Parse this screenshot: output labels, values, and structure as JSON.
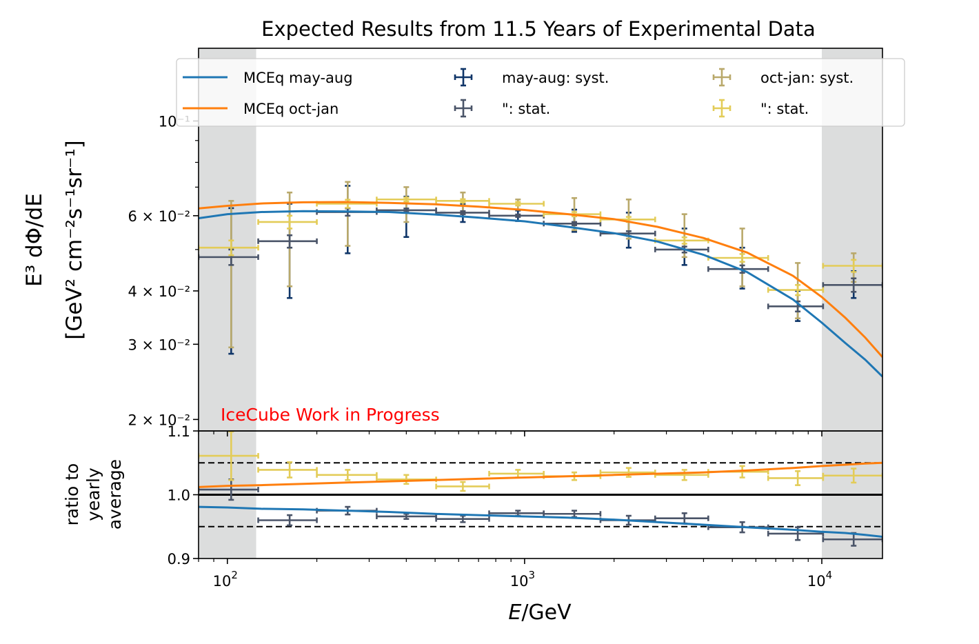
{
  "chart_data": {
    "type": "scatter",
    "title": "Expected Results from 11.5 Years of Experimental Data",
    "xlabel": "E/GeV",
    "ylabel_top": [
      "E³ dΦ/dE",
      "[GeV² cm⁻²s⁻¹sr⁻¹]"
    ],
    "ylabel_bottom": [
      "ratio to",
      "yearly",
      "average"
    ],
    "annotation": "IceCube Work in Progress",
    "xscale": "log",
    "xlim": [
      80,
      16000
    ],
    "top_panel": {
      "yscale": "log",
      "ylim": [
        0.0188,
        0.148
      ],
      "tick_labels": [
        {
          "value": 0.1,
          "label": "10⁻¹"
        },
        {
          "value": 0.06,
          "label": "6 × 10⁻²"
        },
        {
          "value": 0.04,
          "label": "4 × 10⁻²"
        },
        {
          "value": 0.03,
          "label": "3 × 10⁻²"
        },
        {
          "value": 0.02,
          "label": "2 × 10⁻²"
        }
      ]
    },
    "bottom_panel": {
      "ylim": [
        0.9,
        1.1
      ],
      "tick_labels": [
        {
          "value": 1.1,
          "label": "1.1"
        },
        {
          "value": 1.0,
          "label": "1.0"
        },
        {
          "value": 0.9,
          "label": "0.9"
        }
      ],
      "reference_lines": [
        {
          "y": 1.0,
          "style": "solid"
        },
        {
          "y": 1.05,
          "style": "dashed"
        },
        {
          "y": 0.95,
          "style": "dashed"
        }
      ]
    },
    "x_tick_labels": [
      {
        "value": 100,
        "base": "10",
        "exp": "2"
      },
      {
        "value": 1000,
        "base": "10",
        "exp": "3"
      },
      {
        "value": 10000,
        "base": "10",
        "exp": "4"
      }
    ],
    "shaded_regions": [
      [
        80,
        125
      ],
      [
        10000,
        16000
      ]
    ],
    "legend": {
      "placement": "upper-center",
      "entries": [
        {
          "label": "MCEq may-aug",
          "kind": "line",
          "color": "#1f77b4"
        },
        {
          "label": "MCEq oct-jan",
          "kind": "line",
          "color": "#ff7f0e"
        },
        {
          "label": "may-aug: syst.",
          "kind": "errorbar",
          "color": "#0f3568"
        },
        {
          "label": "\": stat.",
          "kind": "errorbar",
          "color": "#4a5468"
        },
        {
          "label": "oct-jan: syst.",
          "kind": "errorbar",
          "color": "#b9a96b"
        },
        {
          "label": "\": stat.",
          "kind": "errorbar",
          "color": "#e3cc58"
        }
      ]
    },
    "series": [
      {
        "name": "MCEq may-aug",
        "kind": "line",
        "color": "#1f77b4",
        "x": [
          80,
          100,
          130,
          180,
          250,
          350,
          500,
          700,
          1000,
          1400,
          2000,
          2800,
          4000,
          5600,
          8000,
          10000,
          12000,
          14000,
          16000
        ],
        "y": [
          0.0592,
          0.0605,
          0.0612,
          0.0615,
          0.0614,
          0.0612,
          0.0604,
          0.0594,
          0.0582,
          0.0565,
          0.0546,
          0.0522,
          0.0486,
          0.0443,
          0.0382,
          0.0337,
          0.0302,
          0.0276,
          0.0252
        ],
        "ratio": [
          0.981,
          0.98,
          0.978,
          0.977,
          0.975,
          0.973,
          0.97,
          0.968,
          0.966,
          0.964,
          0.961,
          0.957,
          0.953,
          0.949,
          0.945,
          0.942,
          0.94,
          0.937,
          0.934
        ]
      },
      {
        "name": "MCEq oct-jan",
        "kind": "line",
        "color": "#ff7f0e",
        "x": [
          80,
          100,
          130,
          180,
          250,
          350,
          500,
          700,
          1000,
          1400,
          2000,
          2800,
          4000,
          5600,
          8000,
          10000,
          12000,
          14000,
          16000
        ],
        "y": [
          0.0624,
          0.0633,
          0.0641,
          0.0645,
          0.0646,
          0.0643,
          0.0638,
          0.063,
          0.0619,
          0.0605,
          0.0589,
          0.0565,
          0.0532,
          0.0492,
          0.0434,
          0.0387,
          0.0346,
          0.0311,
          0.028
        ],
        "ratio": [
          1.012,
          1.014,
          1.015,
          1.017,
          1.019,
          1.021,
          1.023,
          1.025,
          1.027,
          1.029,
          1.031,
          1.033,
          1.035,
          1.038,
          1.042,
          1.045,
          1.047,
          1.049,
          1.05
        ]
      },
      {
        "name": "may-aug",
        "kind": "errorbar",
        "color_syst": "#0f3568",
        "color_stat": "#4a5468",
        "bins": [
          {
            "x": 103,
            "xlo": 80,
            "xhi": 127,
            "y": 0.048,
            "syst": [
              0.0285,
              0.0625
            ],
            "stat": [
              0.046,
              0.05
            ],
            "ratio": 1.008,
            "ratio_err": [
              0.992,
              1.024
            ]
          },
          {
            "x": 162,
            "xlo": 127,
            "xhi": 200,
            "y": 0.0523,
            "syst": [
              0.0385,
              0.064
            ],
            "stat": [
              0.0505,
              0.054
            ],
            "ratio": 0.96,
            "ratio_err": [
              0.952,
              0.968
            ]
          },
          {
            "x": 254,
            "xlo": 200,
            "xhi": 318,
            "y": 0.0612,
            "syst": [
              0.049,
              0.0705
            ],
            "stat": [
              0.06,
              0.0624
            ],
            "ratio": 0.975,
            "ratio_err": [
              0.969,
              0.981
            ]
          },
          {
            "x": 400,
            "xlo": 318,
            "xhi": 504,
            "y": 0.0618,
            "syst": [
              0.0535,
              0.0665
            ],
            "stat": [
              0.0612,
              0.0624
            ],
            "ratio": 0.966,
            "ratio_err": [
              0.962,
              0.97
            ]
          },
          {
            "x": 620,
            "xlo": 504,
            "xhi": 760,
            "y": 0.061,
            "syst": [
              0.058,
              0.064
            ],
            "stat": [
              0.0605,
              0.0615
            ],
            "ratio": 0.962,
            "ratio_err": [
              0.957,
              0.967
            ]
          },
          {
            "x": 950,
            "xlo": 760,
            "xhi": 1160,
            "y": 0.06,
            "syst": [
              0.0583,
              0.0617
            ],
            "stat": [
              0.0596,
              0.0604
            ],
            "ratio": 0.971,
            "ratio_err": [
              0.967,
              0.975
            ]
          },
          {
            "x": 1470,
            "xlo": 1160,
            "xhi": 1800,
            "y": 0.0575,
            "syst": [
              0.055,
              0.062
            ],
            "stat": [
              0.057,
              0.058
            ],
            "ratio": 0.97,
            "ratio_err": [
              0.965,
              0.975
            ]
          },
          {
            "x": 2240,
            "xlo": 1800,
            "xhi": 2750,
            "y": 0.0545,
            "syst": [
              0.0505,
              0.061
            ],
            "stat": [
              0.0538,
              0.0552
            ],
            "ratio": 0.96,
            "ratio_err": [
              0.953,
              0.967
            ]
          },
          {
            "x": 3450,
            "xlo": 2750,
            "xhi": 4150,
            "y": 0.05,
            "syst": [
              0.046,
              0.056
            ],
            "stat": [
              0.0492,
              0.0508
            ],
            "ratio": 0.963,
            "ratio_err": [
              0.955,
              0.971
            ]
          },
          {
            "x": 5400,
            "xlo": 4150,
            "xhi": 6600,
            "y": 0.045,
            "syst": [
              0.0405,
              0.0505
            ],
            "stat": [
              0.0441,
              0.0459
            ],
            "ratio": 0.949,
            "ratio_err": [
              0.941,
              0.957
            ]
          },
          {
            "x": 8300,
            "xlo": 6600,
            "xhi": 10100,
            "y": 0.0368,
            "syst": [
              0.034,
              0.04
            ],
            "stat": [
              0.0358,
              0.0378
            ],
            "ratio": 0.939,
            "ratio_err": [
              0.929,
              0.949
            ]
          },
          {
            "x": 12800,
            "xlo": 10100,
            "xhi": 16000,
            "y": 0.0413,
            "syst": [
              0.0385,
              0.0445
            ],
            "stat": [
              0.0398,
              0.0428
            ],
            "ratio": 0.93,
            "ratio_err": [
              0.92,
              0.94
            ]
          }
        ]
      },
      {
        "name": "oct-jan",
        "kind": "errorbar",
        "color_syst": "#b9a96b",
        "color_stat": "#e3cc58",
        "bins": [
          {
            "x": 103,
            "xlo": 80,
            "xhi": 127,
            "y": 0.0505,
            "syst": [
              0.0295,
              0.065
            ],
            "stat": [
              0.0485,
              0.0525
            ],
            "ratio": 1.061,
            "ratio_err": [
              1.023,
              1.099
            ]
          },
          {
            "x": 162,
            "xlo": 127,
            "xhi": 200,
            "y": 0.058,
            "syst": [
              0.041,
              0.068
            ],
            "stat": [
              0.056,
              0.06
            ],
            "ratio": 1.039,
            "ratio_err": [
              1.027,
              1.051
            ]
          },
          {
            "x": 254,
            "xlo": 200,
            "xhi": 318,
            "y": 0.064,
            "syst": [
              0.051,
              0.072
            ],
            "stat": [
              0.0626,
              0.0654
            ],
            "ratio": 1.031,
            "ratio_err": [
              1.023,
              1.039
            ]
          },
          {
            "x": 400,
            "xlo": 318,
            "xhi": 504,
            "y": 0.0655,
            "syst": [
              0.058,
              0.07
            ],
            "stat": [
              0.0648,
              0.0662
            ],
            "ratio": 1.024,
            "ratio_err": [
              1.017,
              1.031
            ]
          },
          {
            "x": 620,
            "xlo": 504,
            "xhi": 760,
            "y": 0.065,
            "syst": [
              0.0605,
              0.068
            ],
            "stat": [
              0.0644,
              0.0656
            ],
            "ratio": 1.013,
            "ratio_err": [
              1.006,
              1.02
            ]
          },
          {
            "x": 950,
            "xlo": 760,
            "xhi": 1160,
            "y": 0.064,
            "syst": [
              0.062,
              0.0655
            ],
            "stat": [
              0.0634,
              0.0646
            ],
            "ratio": 1.033,
            "ratio_err": [
              1.027,
              1.039
            ]
          },
          {
            "x": 1470,
            "xlo": 1160,
            "xhi": 1800,
            "y": 0.0605,
            "syst": [
              0.0555,
              0.066
            ],
            "stat": [
              0.0598,
              0.0612
            ],
            "ratio": 1.029,
            "ratio_err": [
              1.023,
              1.035
            ]
          },
          {
            "x": 2240,
            "xlo": 1800,
            "xhi": 2750,
            "y": 0.0588,
            "syst": [
              0.053,
              0.0655
            ],
            "stat": [
              0.058,
              0.0596
            ],
            "ratio": 1.035,
            "ratio_err": [
              1.028,
              1.042
            ]
          },
          {
            "x": 3450,
            "xlo": 2750,
            "xhi": 4150,
            "y": 0.0525,
            "syst": [
              0.048,
              0.0605
            ],
            "stat": [
              0.0516,
              0.0534
            ],
            "ratio": 1.031,
            "ratio_err": [
              1.023,
              1.039
            ]
          },
          {
            "x": 5400,
            "xlo": 4150,
            "xhi": 6600,
            "y": 0.0478,
            "syst": [
              0.041,
              0.056
            ],
            "stat": [
              0.0468,
              0.0488
            ],
            "ratio": 1.036,
            "ratio_err": [
              1.027,
              1.045
            ]
          },
          {
            "x": 8300,
            "xlo": 6600,
            "xhi": 10100,
            "y": 0.0402,
            "syst": [
              0.0345,
              0.0465
            ],
            "stat": [
              0.0391,
              0.0413
            ],
            "ratio": 1.026,
            "ratio_err": [
              1.015,
              1.037
            ]
          },
          {
            "x": 12800,
            "xlo": 10100,
            "xhi": 16000,
            "y": 0.0458,
            "syst": [
              0.042,
              0.049
            ],
            "stat": [
              0.0443,
              0.0473
            ],
            "ratio": 1.03,
            "ratio_err": [
              1.019,
              1.041
            ]
          }
        ]
      }
    ]
  }
}
